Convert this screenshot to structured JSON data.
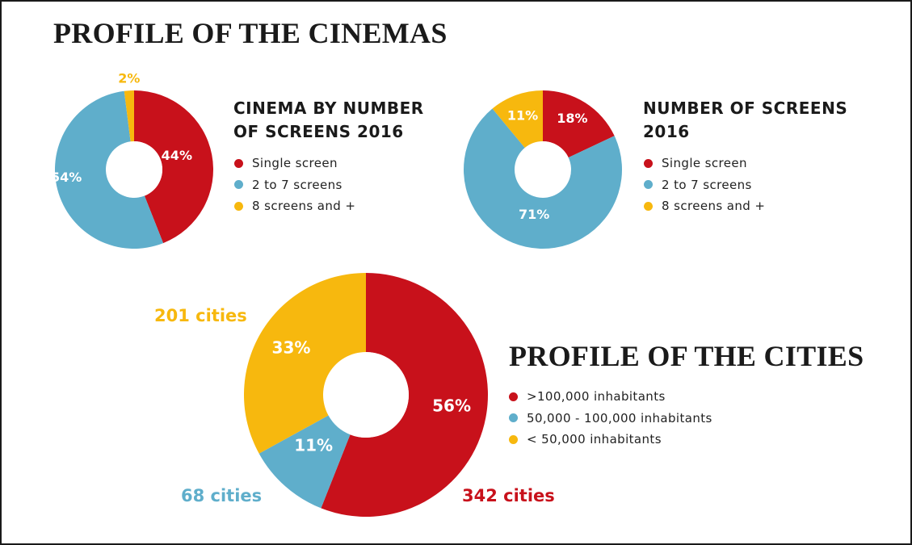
{
  "page": {
    "title": "PROFILE OF THE CINEMAS"
  },
  "colors": {
    "red": "#c8111b",
    "blue": "#5faecb",
    "yellow": "#f7b80e",
    "text": "#1a1a1a"
  },
  "chart_data": [
    {
      "type": "pie",
      "title_lines": [
        "CINEMA BY NUMBER",
        "OF SCREENS 2016"
      ],
      "categories": [
        "Single screen",
        "2 to 7 screens",
        "8 screens and +"
      ],
      "values": [
        44,
        54,
        2
      ],
      "labels": [
        "44%",
        "54%",
        "2%"
      ],
      "colors": [
        "#c8111b",
        "#5faecb",
        "#f7b80e"
      ],
      "legend": "right"
    },
    {
      "type": "pie",
      "title_lines": [
        "NUMBER OF SCREENS",
        "2016"
      ],
      "categories": [
        "Single screen",
        "2 to 7 screens",
        "8 screens and +"
      ],
      "values": [
        18,
        71,
        11
      ],
      "labels": [
        "18%",
        "71%",
        "11%"
      ],
      "colors": [
        "#c8111b",
        "#5faecb",
        "#f7b80e"
      ],
      "legend": "right"
    },
    {
      "type": "pie",
      "title": "PROFILE OF THE CITIES",
      "categories": [
        ">100,000 inhabitants",
        "50,000 - 100,000 inhabitants",
        "< 50,000 inhabitants"
      ],
      "values": [
        56,
        11,
        33
      ],
      "labels": [
        "56%",
        "11%",
        "33%"
      ],
      "counts": [
        "342 cities",
        "68 cities",
        "201 cities"
      ],
      "colors": [
        "#c8111b",
        "#5faecb",
        "#f7b80e"
      ],
      "legend": "right"
    }
  ]
}
